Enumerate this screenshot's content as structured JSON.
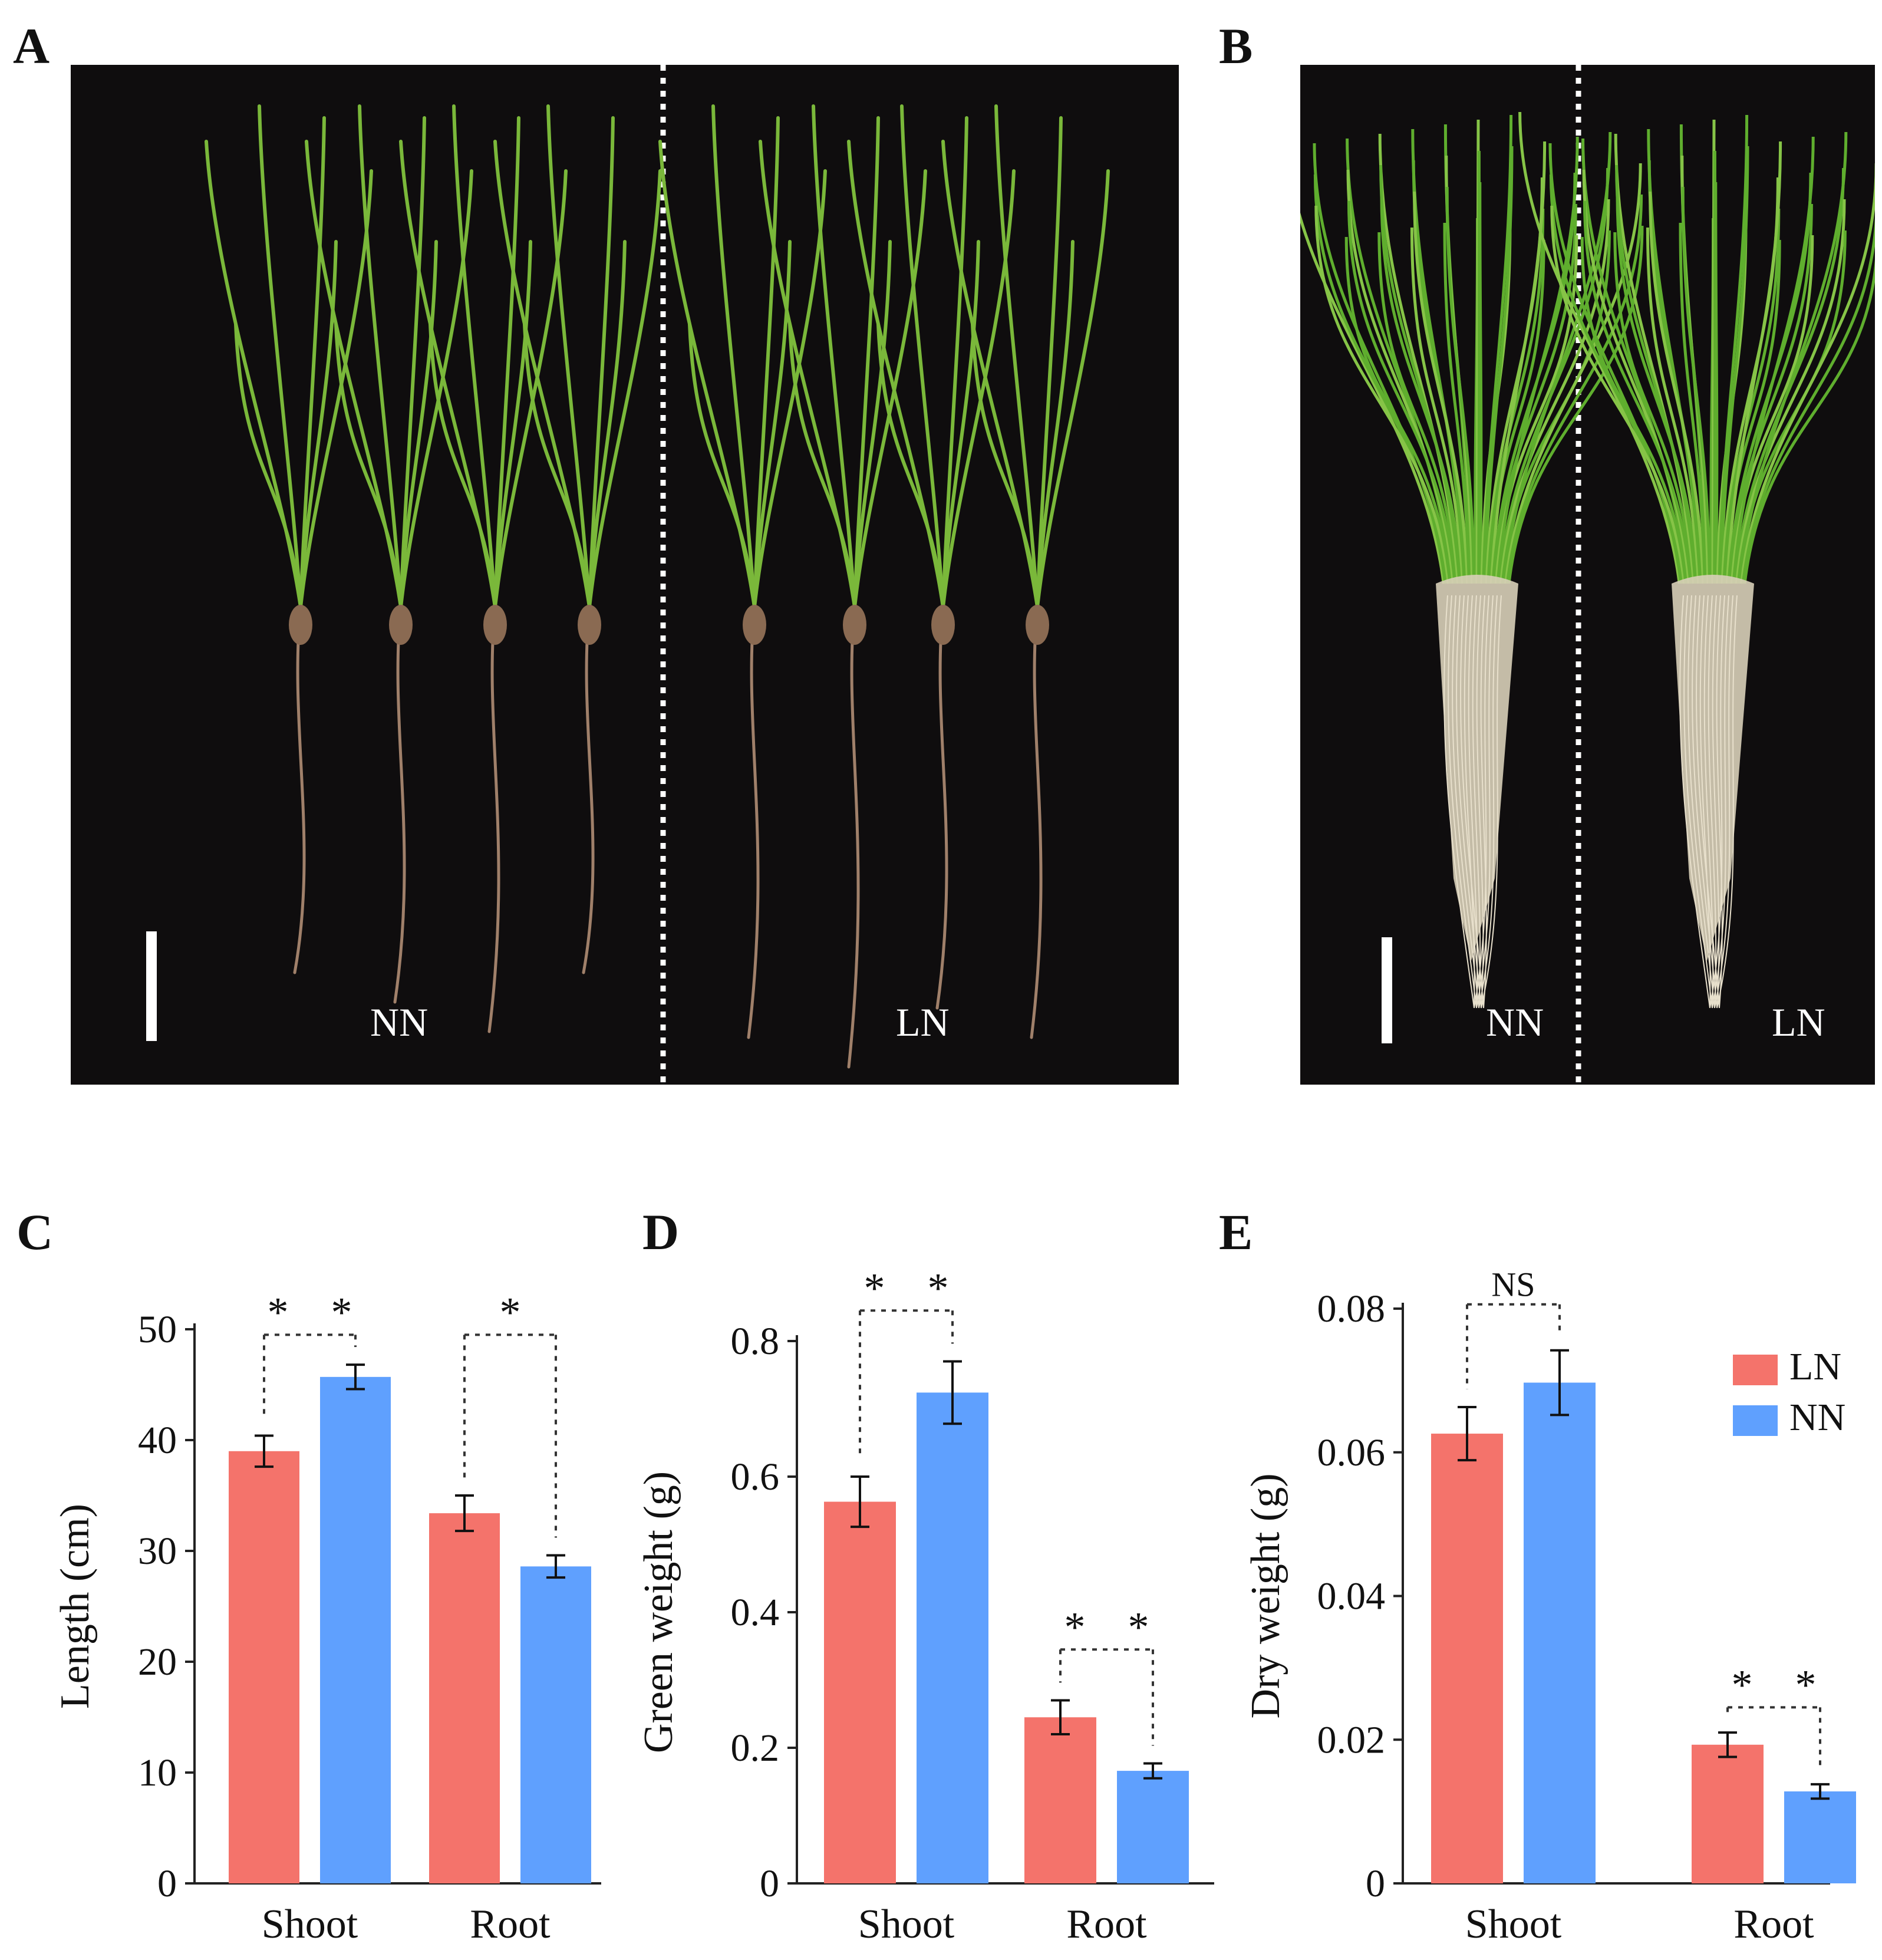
{
  "figure": {
    "panels": {
      "A": {
        "letter": "A",
        "labels": [
          "NN",
          "LN"
        ],
        "left_seedlings": 4,
        "right_seedlings": 4
      },
      "B": {
        "letter": "B",
        "labels": [
          "NN",
          "LN"
        ]
      },
      "C": {
        "letter": "C"
      },
      "D": {
        "letter": "D"
      },
      "E": {
        "letter": "E"
      }
    },
    "legend": [
      "LN",
      "NN"
    ],
    "colors": {
      "LN": "#f4736b",
      "NN": "#5fa0fe",
      "photo_bg": "#0f0d0e",
      "leaf": "#7ab83a",
      "root": "#a0806a"
    }
  },
  "chart_data": [
    {
      "id": "C",
      "type": "bar",
      "ylabel": "Length (cm)",
      "categories": [
        "Shoot",
        "Root"
      ],
      "ylim": [
        0,
        50
      ],
      "yticks": [
        "0",
        "10",
        "20",
        "30",
        "40",
        "50"
      ],
      "ytick_values": [
        0,
        10,
        20,
        30,
        40,
        50
      ],
      "series": [
        {
          "name": "LN",
          "values": [
            39.0,
            33.4
          ],
          "errors": [
            1.4,
            1.6
          ]
        },
        {
          "name": "NN",
          "values": [
            45.7,
            28.6
          ],
          "errors": [
            1.1,
            1.0
          ]
        }
      ],
      "significance": [
        "* *",
        "*"
      ],
      "sig_level": [
        49.5,
        49.5
      ]
    },
    {
      "id": "D",
      "type": "bar",
      "ylabel": "Green weight (g)",
      "categories": [
        "Shoot",
        "Root"
      ],
      "ylim": [
        0,
        0.8
      ],
      "yticks": [
        "0",
        "0.2",
        "0.4",
        "0.6",
        "0.8"
      ],
      "ytick_values": [
        0,
        0.2,
        0.4,
        0.6,
        0.8
      ],
      "series": [
        {
          "name": "LN",
          "values": [
            0.563,
            0.245
          ],
          "errors": [
            0.037,
            0.025
          ]
        },
        {
          "name": "NN",
          "values": [
            0.724,
            0.166
          ],
          "errors": [
            0.046,
            0.011
          ]
        }
      ],
      "significance": [
        "* *",
        "* *"
      ],
      "sig_level": [
        0.845,
        0.345
      ]
    },
    {
      "id": "E",
      "type": "bar",
      "ylabel": "Dry weight (g)",
      "categories": [
        "Shoot",
        "Root"
      ],
      "ylim": [
        0,
        0.08
      ],
      "yticks": [
        "0",
        "0.02",
        "0.04",
        "0.06",
        "0.08"
      ],
      "ytick_values": [
        0,
        0.02,
        0.04,
        0.06,
        0.08
      ],
      "series": [
        {
          "name": "LN",
          "values": [
            0.0626,
            0.0193
          ],
          "errors": [
            0.0037,
            0.0017
          ]
        },
        {
          "name": "NN",
          "values": [
            0.0697,
            0.0128
          ],
          "errors": [
            0.0045,
            0.001
          ]
        }
      ],
      "significance": [
        "NS",
        "* *"
      ],
      "sig_level": [
        0.0806,
        0.0245
      ]
    }
  ]
}
